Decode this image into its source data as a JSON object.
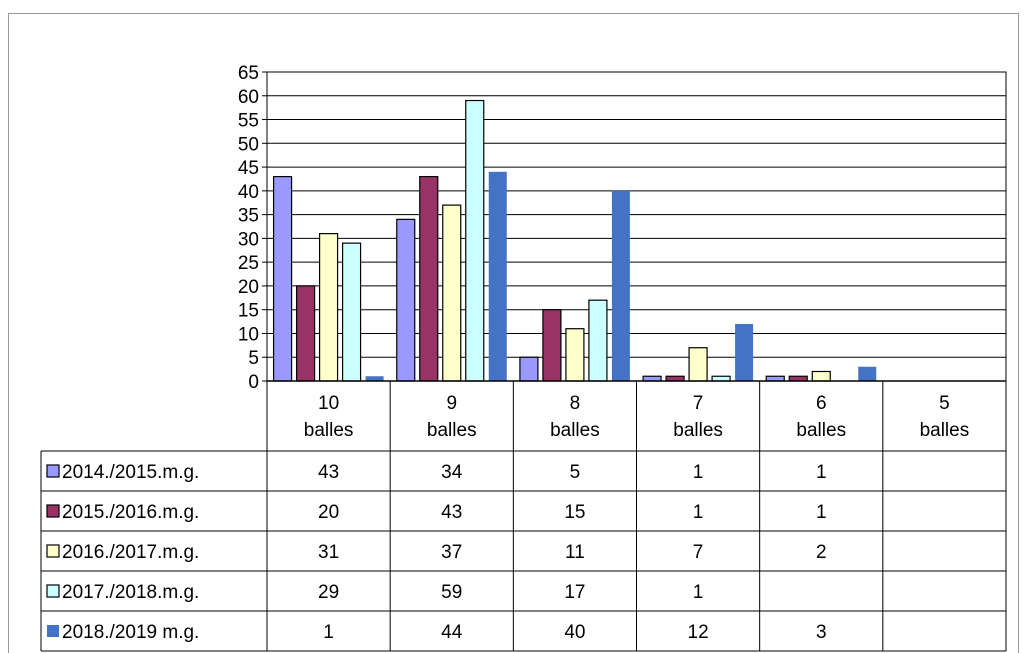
{
  "chart_data": {
    "type": "bar",
    "categories": [
      "10 balles",
      "9 balles",
      "8 balles",
      "7 balles",
      "6 balles",
      "5 balles"
    ],
    "category_lines": [
      [
        "10",
        "balles"
      ],
      [
        "9",
        "balles"
      ],
      [
        "8",
        "balles"
      ],
      [
        "7",
        "balles"
      ],
      [
        "6",
        "balles"
      ],
      [
        "5",
        "balles"
      ]
    ],
    "y_ticks": [
      "0",
      "5",
      "10",
      "15",
      "20",
      "25",
      "30",
      "35",
      "40",
      "45",
      "50",
      "55",
      "60",
      "65"
    ],
    "ylim": [
      0,
      65
    ],
    "grid": true,
    "legend": "data-table",
    "series": [
      {
        "name": "2014./2015.m.g.",
        "color": "#9999ff",
        "values": [
          43,
          34,
          5,
          1,
          1,
          null
        ]
      },
      {
        "name": "2015./2016.m.g.",
        "color": "#993366",
        "values": [
          20,
          43,
          15,
          1,
          1,
          null
        ]
      },
      {
        "name": "2016./2017.m.g.",
        "color": "#ffffcc",
        "values": [
          31,
          37,
          11,
          7,
          2,
          null
        ]
      },
      {
        "name": "2017./2018.m.g.",
        "color": "#ccffff",
        "values": [
          29,
          59,
          17,
          1,
          null,
          null
        ]
      },
      {
        "name": "2018./2019 m.g.",
        "color": "#4472c4",
        "values": [
          1,
          44,
          40,
          12,
          3,
          null
        ]
      }
    ]
  }
}
